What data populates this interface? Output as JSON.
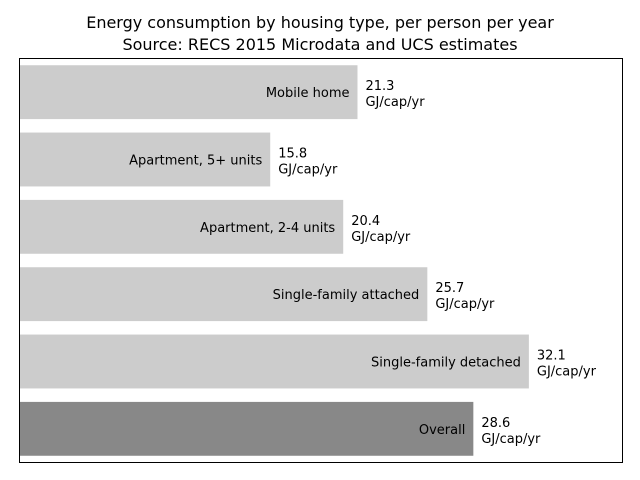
{
  "chart_data": {
    "type": "bar",
    "orientation": "horizontal",
    "title": "Energy consumption by housing type, per person per year",
    "subtitle": "Source: RECS 2015 Microdata and UCS estimates",
    "categories": [
      "Mobile home",
      "Apartment, 5+ units",
      "Apartment, 2-4 units",
      "Single-family attached",
      "Single-family detached",
      "Overall"
    ],
    "values": [
      21.3,
      15.8,
      20.4,
      25.7,
      32.1,
      28.6
    ],
    "value_labels": [
      "21.3",
      "15.8",
      "20.4",
      "25.7",
      "32.1",
      "28.6"
    ],
    "unit_label": "GJ/cap/yr",
    "xlim": [
      0,
      38
    ],
    "xlabel": "",
    "ylabel": "",
    "grid": false,
    "axis_ticks": false,
    "colors": {
      "bar": "#cccccc",
      "overall_bar": "#888888",
      "text": "#000000"
    }
  }
}
